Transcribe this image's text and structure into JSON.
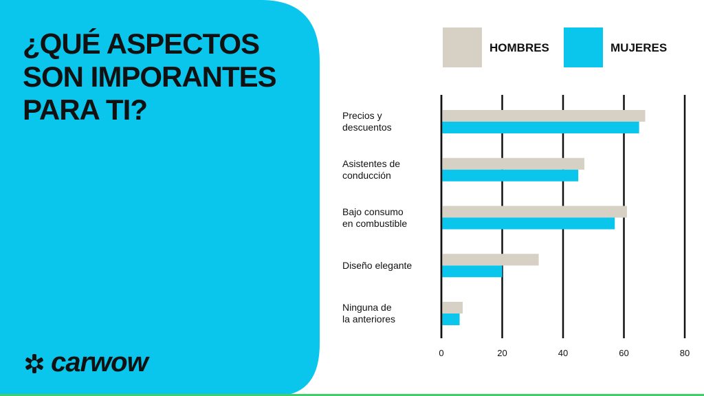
{
  "chart_data": {
    "type": "bar",
    "orientation": "horizontal",
    "title": "¿QUÉ ASPECTOS\nSON IMPORANTES\nPARA TI?",
    "brand": "carwow",
    "categories": [
      "Precios y\ndescuentos",
      "Asistentes de\nconducción",
      "Bajo consumo\nen combustible",
      "Diseño elegante",
      "Ninguna de\nla anteriores"
    ],
    "series": [
      {
        "name": "HOMBRES",
        "color": "#d6d1c4",
        "values": [
          67,
          47,
          61,
          32,
          7
        ]
      },
      {
        "name": "MUJERES",
        "color": "#0bc6ec",
        "values": [
          65,
          45,
          57,
          20,
          6
        ]
      }
    ],
    "xlim": [
      0,
      80
    ],
    "xticks": [
      0,
      20,
      40,
      60,
      80
    ],
    "grid": true
  }
}
